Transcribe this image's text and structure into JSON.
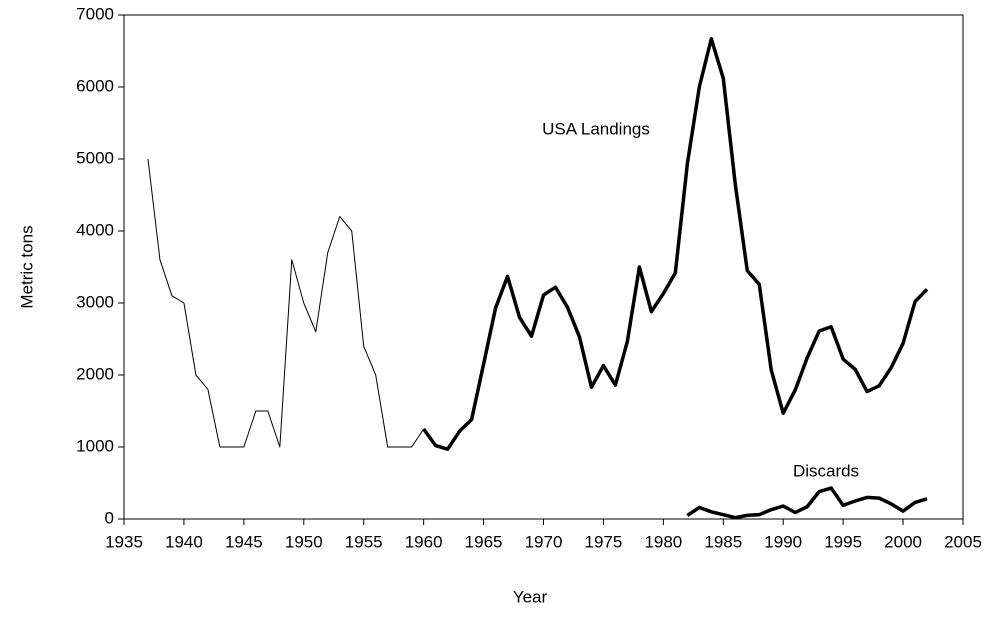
{
  "chart_data": {
    "type": "line",
    "x_label": "Year",
    "y_label": "Metric tons",
    "xlim": [
      1935,
      2005
    ],
    "xticks": [
      1935,
      1940,
      1945,
      1950,
      1955,
      1960,
      1965,
      1970,
      1975,
      1980,
      1985,
      1990,
      1995,
      2000,
      2005
    ],
    "ylim": [
      0,
      7000
    ],
    "yticks": [
      0,
      1000,
      2000,
      3000,
      4000,
      5000,
      6000,
      7000
    ],
    "grid": false,
    "series": [
      {
        "color": "#000000",
        "line_width": 1,
        "x": [
          1937,
          1938,
          1939,
          1940,
          1941,
          1942,
          1943,
          1944,
          1945,
          1946,
          1947,
          1948,
          1949,
          1950,
          1951,
          1952,
          1953,
          1954,
          1955,
          1956,
          1957,
          1958,
          1959,
          1960
        ],
        "values": [
          5000,
          3600,
          3100,
          3000,
          2000,
          1800,
          1000,
          1000,
          1000,
          1500,
          1500,
          1000,
          3600,
          3000,
          2600,
          3700,
          4200,
          4000,
          2400,
          2000,
          1000,
          1000,
          1000,
          1250
        ]
      },
      {
        "name": "USA Landings",
        "color": "#000000",
        "line_width": 3.5,
        "x": [
          1960,
          1961,
          1962,
          1963,
          1964,
          1965,
          1966,
          1967,
          1968,
          1969,
          1970,
          1971,
          1972,
          1973,
          1974,
          1975,
          1976,
          1977,
          1978,
          1979,
          1980,
          1981,
          1982,
          1983,
          1984,
          1985,
          1986,
          1987,
          1988,
          1989,
          1990,
          1991,
          1992,
          1993,
          1994,
          1995,
          1996,
          1997,
          1998,
          1999,
          2000,
          2001,
          2002
        ],
        "values": [
          1250,
          1020,
          970,
          1220,
          1380,
          2150,
          2930,
          3370,
          2800,
          2540,
          3110,
          3220,
          2940,
          2530,
          1830,
          2130,
          1860,
          2470,
          3500,
          2880,
          3130,
          3420,
          4930,
          6000,
          6670,
          6120,
          4650,
          3450,
          3260,
          2070,
          1470,
          1790,
          2240,
          2610,
          2670,
          2220,
          2080,
          1770,
          1850,
          2100,
          2440,
          3020,
          3190
        ]
      },
      {
        "name": "Discards",
        "color": "#000000",
        "line_width": 3.5,
        "x": [
          1982,
          1983,
          1984,
          1985,
          1986,
          1987,
          1988,
          1989,
          1990,
          1991,
          1992,
          1993,
          1994,
          1995,
          1996,
          1997,
          1998,
          1999,
          2000,
          2001,
          2002
        ],
        "values": [
          50,
          160,
          100,
          60,
          20,
          50,
          60,
          130,
          180,
          90,
          170,
          380,
          430,
          190,
          250,
          300,
          290,
          210,
          110,
          230,
          280
        ]
      }
    ]
  }
}
